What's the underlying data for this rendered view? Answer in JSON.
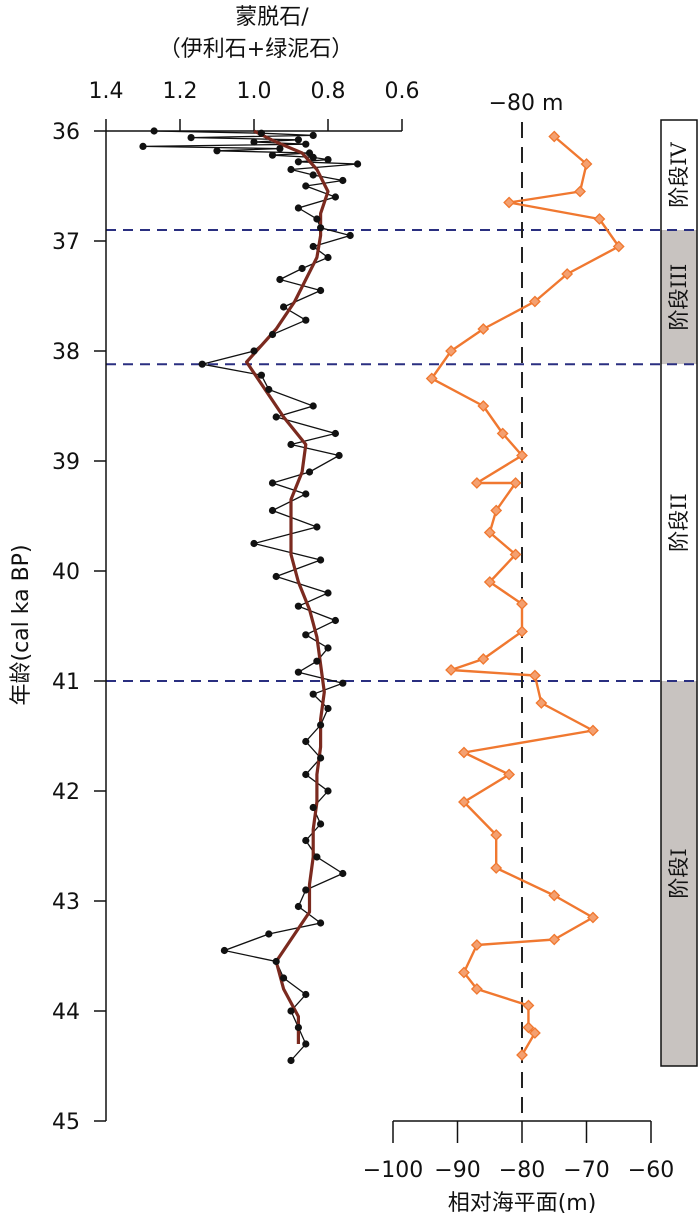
{
  "chart_data": {
    "type": "line",
    "left_panel": {
      "title_line1": "蒙脱石/",
      "title_line2": "（伊利石+绿泥石）",
      "x_ticks": [
        "1.4",
        "1.2",
        "1.0",
        "0.8",
        "0.6"
      ],
      "x_tick_values": [
        1.4,
        1.2,
        1.0,
        0.8,
        0.6
      ],
      "xlim": [
        1.4,
        0.6
      ],
      "x_reversed": true,
      "ylabel": "年龄(cal ka BP)",
      "y_ticks": [
        "36",
        "37",
        "38",
        "39",
        "40",
        "41",
        "42",
        "43",
        "44",
        "45"
      ],
      "y_tick_values": [
        36,
        37,
        38,
        39,
        40,
        41,
        42,
        43,
        44,
        45
      ],
      "ylim": [
        36,
        45
      ],
      "raw_series": {
        "color": "#111111",
        "points": [
          [
            1.27,
            36.0
          ],
          [
            0.98,
            36.02
          ],
          [
            0.84,
            36.04
          ],
          [
            1.17,
            36.06
          ],
          [
            0.88,
            36.08
          ],
          [
            1.0,
            36.1
          ],
          [
            0.86,
            36.12
          ],
          [
            1.3,
            36.14
          ],
          [
            0.93,
            36.16
          ],
          [
            1.1,
            36.18
          ],
          [
            0.85,
            36.2
          ],
          [
            0.95,
            36.22
          ],
          [
            0.84,
            36.24
          ],
          [
            0.8,
            36.26
          ],
          [
            0.88,
            36.28
          ],
          [
            0.72,
            36.3
          ],
          [
            0.9,
            36.35
          ],
          [
            0.84,
            36.4
          ],
          [
            0.76,
            36.45
          ],
          [
            0.86,
            36.5
          ],
          [
            0.78,
            36.6
          ],
          [
            0.88,
            36.7
          ],
          [
            0.83,
            36.8
          ],
          [
            0.82,
            36.88
          ],
          [
            0.74,
            36.95
          ],
          [
            0.84,
            37.05
          ],
          [
            0.8,
            37.15
          ],
          [
            0.87,
            37.25
          ],
          [
            0.93,
            37.35
          ],
          [
            0.82,
            37.45
          ],
          [
            0.92,
            37.6
          ],
          [
            0.86,
            37.72
          ],
          [
            0.95,
            37.85
          ],
          [
            1.0,
            38.0
          ],
          [
            1.14,
            38.12
          ],
          [
            0.98,
            38.22
          ],
          [
            0.96,
            38.35
          ],
          [
            0.84,
            38.5
          ],
          [
            0.94,
            38.6
          ],
          [
            0.78,
            38.75
          ],
          [
            0.9,
            38.85
          ],
          [
            0.77,
            38.95
          ],
          [
            0.85,
            39.1
          ],
          [
            0.95,
            39.2
          ],
          [
            0.86,
            39.3
          ],
          [
            0.95,
            39.45
          ],
          [
            0.83,
            39.6
          ],
          [
            1.0,
            39.75
          ],
          [
            0.82,
            39.9
          ],
          [
            0.94,
            40.05
          ],
          [
            0.8,
            40.2
          ],
          [
            0.88,
            40.32
          ],
          [
            0.78,
            40.45
          ],
          [
            0.86,
            40.58
          ],
          [
            0.8,
            40.7
          ],
          [
            0.83,
            40.82
          ],
          [
            0.88,
            40.92
          ],
          [
            0.76,
            41.02
          ],
          [
            0.84,
            41.12
          ],
          [
            0.8,
            41.25
          ],
          [
            0.82,
            41.4
          ],
          [
            0.86,
            41.55
          ],
          [
            0.82,
            41.7
          ],
          [
            0.86,
            41.85
          ],
          [
            0.8,
            42.0
          ],
          [
            0.84,
            42.15
          ],
          [
            0.82,
            42.3
          ],
          [
            0.86,
            42.45
          ],
          [
            0.83,
            42.6
          ],
          [
            0.76,
            42.75
          ],
          [
            0.86,
            42.9
          ],
          [
            0.88,
            43.05
          ],
          [
            0.82,
            43.2
          ],
          [
            0.96,
            43.3
          ],
          [
            1.08,
            43.45
          ],
          [
            0.94,
            43.55
          ],
          [
            0.92,
            43.7
          ],
          [
            0.86,
            43.85
          ],
          [
            0.9,
            44.0
          ],
          [
            0.88,
            44.15
          ],
          [
            0.86,
            44.3
          ],
          [
            0.9,
            44.45
          ]
        ]
      },
      "smooth_series": {
        "color": "#7b2a1f",
        "points": [
          [
            1.0,
            36.0
          ],
          [
            0.94,
            36.1
          ],
          [
            0.87,
            36.2
          ],
          [
            0.83,
            36.35
          ],
          [
            0.8,
            36.55
          ],
          [
            0.82,
            36.75
          ],
          [
            0.82,
            36.95
          ],
          [
            0.83,
            37.15
          ],
          [
            0.86,
            37.35
          ],
          [
            0.89,
            37.55
          ],
          [
            0.94,
            37.8
          ],
          [
            1.02,
            38.1
          ],
          [
            0.97,
            38.35
          ],
          [
            0.92,
            38.6
          ],
          [
            0.86,
            38.85
          ],
          [
            0.87,
            39.1
          ],
          [
            0.9,
            39.35
          ],
          [
            0.9,
            39.6
          ],
          [
            0.9,
            39.85
          ],
          [
            0.88,
            40.1
          ],
          [
            0.85,
            40.35
          ],
          [
            0.83,
            40.6
          ],
          [
            0.82,
            40.85
          ],
          [
            0.81,
            41.1
          ],
          [
            0.82,
            41.35
          ],
          [
            0.82,
            41.6
          ],
          [
            0.83,
            41.85
          ],
          [
            0.83,
            42.1
          ],
          [
            0.84,
            42.35
          ],
          [
            0.84,
            42.6
          ],
          [
            0.85,
            42.85
          ],
          [
            0.85,
            43.1
          ],
          [
            0.9,
            43.35
          ],
          [
            0.94,
            43.55
          ],
          [
            0.92,
            43.8
          ],
          [
            0.88,
            44.05
          ],
          [
            0.88,
            44.3
          ]
        ]
      }
    },
    "right_panel": {
      "xlabel": "相对海平面(m)",
      "x_ticks": [
        "−100",
        "−90",
        "−80",
        "−70",
        "−60"
      ],
      "x_tick_values": [
        -100,
        -90,
        -80,
        -70,
        -60
      ],
      "xlim": [
        -100,
        -60
      ],
      "reference_line": {
        "value": -80,
        "label": "−80 m"
      },
      "series": {
        "color": "#f07830",
        "marker_color": "#f4a070",
        "points": [
          [
            -75,
            36.05
          ],
          [
            -70,
            36.3
          ],
          [
            -71,
            36.55
          ],
          [
            -82,
            36.65
          ],
          [
            -68,
            36.8
          ],
          [
            -65,
            37.05
          ],
          [
            -73,
            37.3
          ],
          [
            -78,
            37.55
          ],
          [
            -86,
            37.8
          ],
          [
            -91,
            38.0
          ],
          [
            -94,
            38.25
          ],
          [
            -86,
            38.5
          ],
          [
            -83,
            38.75
          ],
          [
            -80,
            38.95
          ],
          [
            -87,
            39.2
          ],
          [
            -81,
            39.2
          ],
          [
            -84,
            39.45
          ],
          [
            -85,
            39.65
          ],
          [
            -81,
            39.85
          ],
          [
            -85,
            40.1
          ],
          [
            -80,
            40.3
          ],
          [
            -80,
            40.55
          ],
          [
            -86,
            40.8
          ],
          [
            -91,
            40.9
          ],
          [
            -78,
            40.95
          ],
          [
            -77,
            41.2
          ],
          [
            -69,
            41.45
          ],
          [
            -89,
            41.65
          ],
          [
            -82,
            41.85
          ],
          [
            -89,
            42.1
          ],
          [
            -84,
            42.4
          ],
          [
            -84,
            42.7
          ],
          [
            -75,
            42.95
          ],
          [
            -69,
            43.15
          ],
          [
            -75,
            43.35
          ],
          [
            -87,
            43.4
          ],
          [
            -89,
            43.65
          ],
          [
            -87,
            43.8
          ],
          [
            -79,
            43.95
          ],
          [
            -79,
            44.15
          ],
          [
            -78,
            44.2
          ],
          [
            -80,
            44.4
          ]
        ]
      }
    },
    "stage_boundaries": [
      36.9,
      38.12,
      41.0
    ],
    "stages": [
      {
        "label": "阶段IV",
        "from": 36.0,
        "to": 36.9,
        "shaded": false
      },
      {
        "label": "阶段III",
        "from": 36.9,
        "to": 38.12,
        "shaded": true
      },
      {
        "label": "阶段II",
        "from": 38.12,
        "to": 41.0,
        "shaded": false
      },
      {
        "label": "阶段I",
        "from": 41.0,
        "to": 44.55,
        "shaded": true
      }
    ],
    "colors": {
      "boundary_line": "#2a2f80",
      "stage_shade": "#c8c3c0",
      "axis": "#111111"
    }
  }
}
